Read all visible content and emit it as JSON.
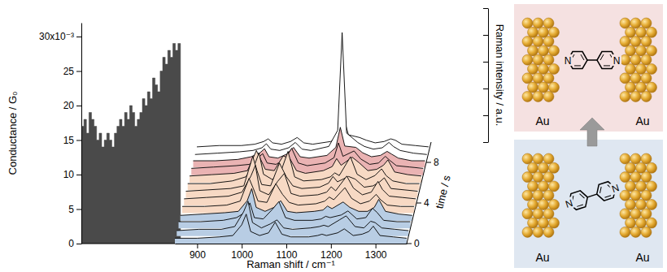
{
  "chart_data": [
    {
      "type": "area",
      "ylabel": "Conductance / G₀",
      "color": "#4a4a4a",
      "tick_labels": "y",
      "xlim": [
        0,
        10
      ],
      "ylim": [
        0,
        32
      ],
      "yticks": [
        0,
        5,
        10,
        15,
        20,
        25,
        {
          "value": 30,
          "label": "30x10⁻³"
        }
      ],
      "x": [
        0,
        0.25,
        0.5,
        0.75,
        1,
        1.25,
        1.5,
        1.75,
        2,
        2.25,
        2.5,
        2.75,
        3,
        3.25,
        3.5,
        3.75,
        4,
        4.25,
        4.5,
        4.75,
        5,
        5.25,
        5.5,
        5.75,
        6,
        6.25,
        6.5,
        6.75,
        7,
        7.25,
        7.5,
        7.75,
        8,
        8.25,
        8.5,
        8.75,
        9,
        9.25,
        9.5,
        9.75
      ],
      "values": [
        17,
        18,
        16,
        19,
        18,
        17,
        15,
        16,
        14,
        15,
        16,
        15,
        14,
        16,
        17,
        18,
        17,
        19,
        18,
        20,
        19,
        17,
        18,
        19,
        21,
        20,
        22,
        21,
        24,
        23,
        22,
        25,
        27,
        26,
        28,
        27,
        29,
        28,
        29,
        28
      ]
    },
    {
      "type": "waterfall",
      "xlabel": "Raman shift / cm⁻¹",
      "ylabel": "Raman intensity / a.u.",
      "zlabel": "time / s",
      "tick_labels": "x",
      "xlim": [
        850,
        1370
      ],
      "xticks": [
        900,
        1000,
        1100,
        1200,
        1300
      ],
      "ylim": [
        0,
        10
      ],
      "yticks": [
        0,
        2,
        4,
        6,
        8,
        10
      ],
      "zlim": [
        0,
        10
      ],
      "zticks": [
        0,
        4,
        8
      ],
      "x": [
        850,
        900,
        950,
        980,
        1000,
        1010,
        1020,
        1040,
        1060,
        1075,
        1090,
        1110,
        1150,
        1170,
        1180,
        1190,
        1215,
        1230,
        1250,
        1270,
        1285,
        1295,
        1310,
        1340,
        1370
      ],
      "series": [
        {
          "color": "#b8cde4",
          "time": 0,
          "values": [
            0.4,
            0.4,
            0.5,
            0.6,
            1.4,
            2.2,
            0.9,
            0.6,
            0.8,
            1.6,
            0.7,
            0.5,
            0.5,
            0.6,
            0.7,
            0.6,
            0.8,
            1.1,
            0.6,
            0.7,
            0.9,
            1.3,
            0.6,
            0.5,
            0.4
          ]
        },
        {
          "color": "#b8cde4",
          "time": 0.75,
          "values": [
            0.4,
            0.5,
            0.5,
            0.7,
            1.8,
            2.6,
            1.0,
            0.6,
            0.9,
            1.2,
            0.6,
            0.5,
            0.6,
            0.7,
            0.8,
            0.7,
            1.2,
            1.5,
            0.7,
            0.6,
            1.1,
            1.0,
            0.6,
            0.5,
            0.4
          ]
        },
        {
          "color": "#b8cde4",
          "time": 1.5,
          "values": [
            0.5,
            0.5,
            0.6,
            0.8,
            1.2,
            1.9,
            0.8,
            0.7,
            1.4,
            2.0,
            0.8,
            0.6,
            0.6,
            0.7,
            0.9,
            0.8,
            1.0,
            1.3,
            0.7,
            0.8,
            1.5,
            1.2,
            0.6,
            0.5,
            0.5
          ]
        },
        {
          "color": "#b8cde4",
          "time": 2.25,
          "values": [
            0.4,
            0.5,
            0.6,
            0.7,
            1.5,
            2.4,
            1.0,
            0.7,
            1.0,
            1.5,
            0.7,
            0.6,
            0.7,
            0.8,
            1.1,
            0.9,
            1.4,
            1.0,
            0.7,
            0.7,
            1.0,
            1.6,
            0.7,
            0.5,
            0.4
          ]
        },
        {
          "color": "#f7d9c4",
          "time": 3,
          "values": [
            0.5,
            0.5,
            0.6,
            0.9,
            2.6,
            1.8,
            0.9,
            0.8,
            2.2,
            1.4,
            0.8,
            0.6,
            0.7,
            0.9,
            1.2,
            1.0,
            1.9,
            1.1,
            0.7,
            0.9,
            1.4,
            1.0,
            0.6,
            0.5,
            0.5
          ]
        },
        {
          "color": "#f7d9c4",
          "time": 3.75,
          "values": [
            0.5,
            0.6,
            0.7,
            1.0,
            2.2,
            3.0,
            1.1,
            0.8,
            1.8,
            2.4,
            0.9,
            0.7,
            0.8,
            1.0,
            1.4,
            1.1,
            2.2,
            1.3,
            0.8,
            1.0,
            1.8,
            1.2,
            0.7,
            0.6,
            0.5
          ]
        },
        {
          "color": "#f7d9c4",
          "time": 4.5,
          "values": [
            0.5,
            0.6,
            0.7,
            0.9,
            3.1,
            2.0,
            1.0,
            0.9,
            2.6,
            1.6,
            0.9,
            0.7,
            0.8,
            1.1,
            1.6,
            1.2,
            1.6,
            1.4,
            0.8,
            0.9,
            1.2,
            1.5,
            0.7,
            0.6,
            0.5
          ]
        },
        {
          "color": "#f7d9c4",
          "time": 5.25,
          "values": [
            0.5,
            0.5,
            0.7,
            1.0,
            1.9,
            2.8,
            1.2,
            0.8,
            1.5,
            2.9,
            1.0,
            0.7,
            0.8,
            1.0,
            1.3,
            1.1,
            2.5,
            1.2,
            0.8,
            1.1,
            1.6,
            1.1,
            0.7,
            0.5,
            0.5
          ]
        },
        {
          "color": "#f7d9c4",
          "time": 6,
          "values": [
            0.5,
            0.6,
            0.7,
            0.9,
            2.4,
            1.7,
            1.0,
            0.9,
            2.0,
            1.8,
            0.9,
            0.7,
            0.9,
            1.2,
            1.8,
            1.3,
            1.9,
            1.5,
            0.9,
            1.0,
            1.3,
            1.7,
            0.8,
            0.6,
            0.5
          ]
        },
        {
          "color": "#eab3b3",
          "time": 6.75,
          "values": [
            0.5,
            0.6,
            0.7,
            0.8,
            1.3,
            1.6,
            0.9,
            0.8,
            1.2,
            2.0,
            0.9,
            0.7,
            0.9,
            1.3,
            2.4,
            1.4,
            1.8,
            1.2,
            0.8,
            0.9,
            1.4,
            1.1,
            0.7,
            0.6,
            0.5
          ]
        },
        {
          "color": "#eab3b3",
          "time": 7.5,
          "values": [
            0.5,
            0.5,
            0.6,
            0.8,
            1.1,
            1.4,
            0.8,
            0.7,
            1.0,
            1.5,
            0.8,
            0.7,
            0.9,
            1.5,
            3.0,
            1.6,
            1.5,
            1.1,
            0.8,
            0.9,
            1.2,
            1.0,
            0.7,
            0.5,
            0.5
          ]
        },
        {
          "color": "#ffffff",
          "time": 8.25,
          "values": [
            0.4,
            0.5,
            0.6,
            0.7,
            0.9,
            1.2,
            0.8,
            0.7,
            0.9,
            1.3,
            0.8,
            0.7,
            1.0,
            2.2,
            9.5,
            2.0,
            1.3,
            1.0,
            0.8,
            0.9,
            1.3,
            1.0,
            0.7,
            0.5,
            0.4
          ]
        },
        {
          "color": "#ffffff",
          "time": 9,
          "values": [
            0.4,
            0.5,
            0.5,
            0.6,
            0.8,
            1.0,
            0.7,
            0.6,
            0.8,
            1.1,
            0.7,
            0.6,
            0.8,
            1.2,
            2.5,
            1.3,
            1.1,
            0.9,
            0.7,
            0.8,
            1.0,
            0.9,
            0.6,
            0.5,
            0.4
          ]
        }
      ]
    }
  ],
  "diagram": {
    "panels": [
      {
        "electrodes": [
          "Au",
          "Au"
        ],
        "atoms": [
          "N",
          "N"
        ]
      },
      {
        "electrodes": [
          "Au",
          "Au"
        ],
        "atoms": [
          "N",
          "N"
        ]
      }
    ]
  }
}
